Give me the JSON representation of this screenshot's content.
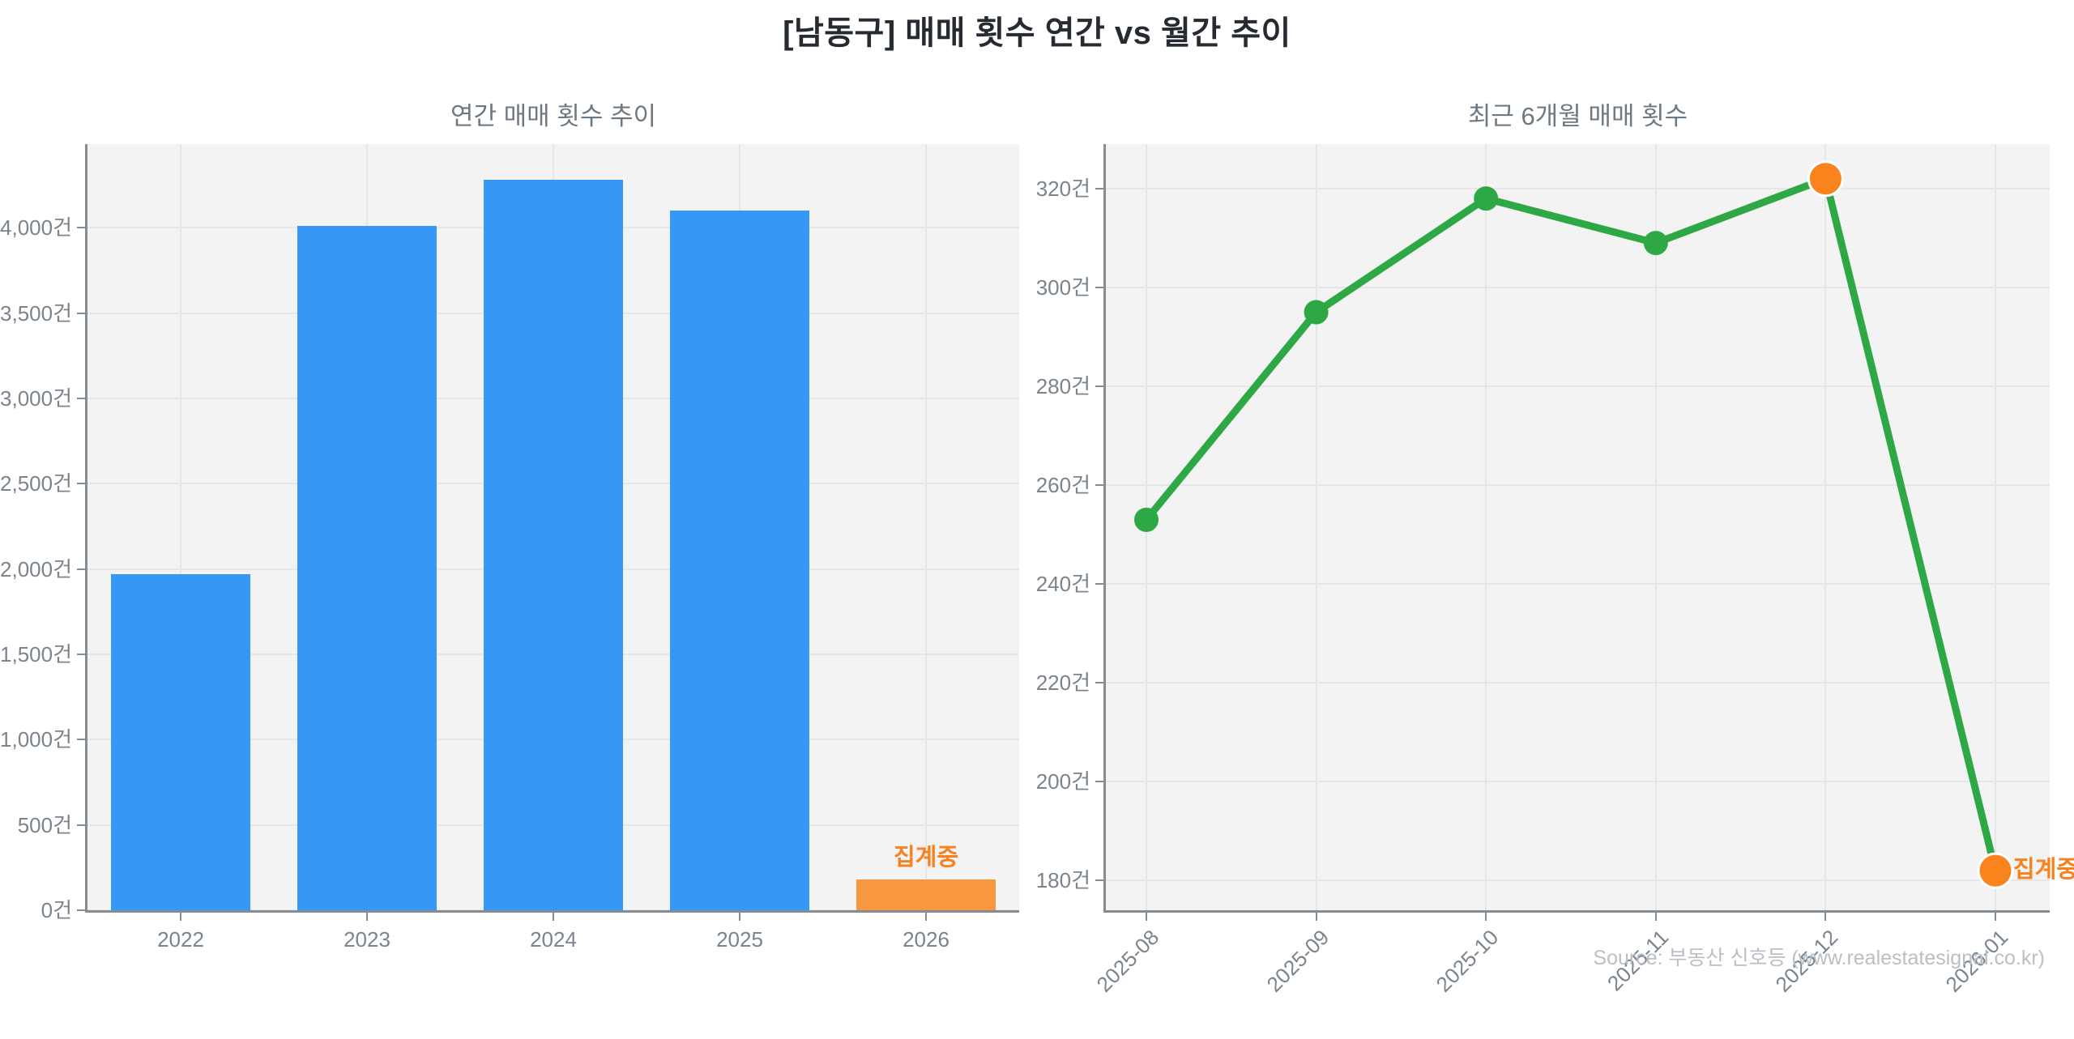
{
  "page": {
    "title": "[남동구] 매매 횟수 연간 vs 월간 추이",
    "source": "Source: 부동산 신호등 (www.realestatesignal.co.kr)"
  },
  "colors": {
    "main_title": "#262a31",
    "subplot_title": "#6e7880",
    "tick_label": "#7b848c",
    "plot_bg": "#f2f3f2",
    "gridline": "#e5e6e5",
    "spine": "#848c94",
    "bar_blue": "#3797f4",
    "bar_orange": "#f99640",
    "line_green": "#2ea845",
    "marker_green": "#2ea845",
    "marker_orange": "#f9831c",
    "estimate_text_orange": "#f8811f",
    "source_text": "#b9bfc5"
  },
  "chart_data": [
    {
      "type": "bar",
      "title": "연간 매매 횟수 추이",
      "categories": [
        "2022",
        "2023",
        "2024",
        "2025",
        "2026"
      ],
      "values": [
        1970,
        4010,
        4280,
        4100,
        180
      ],
      "unit": "건",
      "ylim": [
        0,
        4490
      ],
      "yticks": [
        0,
        500,
        1000,
        1500,
        2000,
        2500,
        3000,
        3500,
        4000
      ],
      "grid": "on",
      "highlight_index": 4,
      "highlight_label": "집계중"
    },
    {
      "type": "line",
      "title": "최근 6개월 매매 횟수",
      "categories": [
        "2025-08",
        "2025-09",
        "2025-10",
        "2025-11",
        "2025-12",
        "2026-01"
      ],
      "values": [
        253,
        295,
        318,
        309,
        322,
        182
      ],
      "unit": "건",
      "ylim": [
        174,
        329
      ],
      "yticks": [
        180,
        200,
        220,
        240,
        260,
        280,
        300,
        320
      ],
      "grid": "on",
      "estimate_indices": [
        4,
        5
      ],
      "estimate_label": "집계중",
      "estimate_label_index": 5
    }
  ]
}
